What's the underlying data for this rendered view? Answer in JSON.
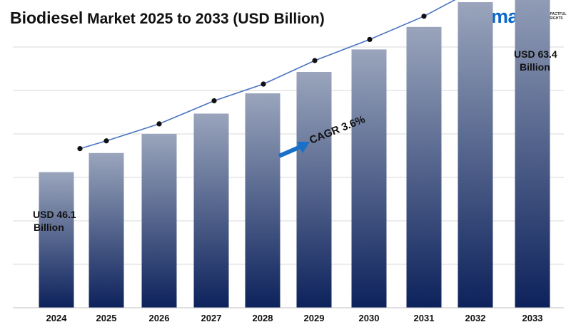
{
  "header": {
    "title_main": "Biodiesel",
    "title_rest": " Market 2025 to 2033 (USD Billion)"
  },
  "logo": {
    "word": "imarc",
    "tagline_1": "IMPACTFUL",
    "tagline_2": "INSIGHTS",
    "color": "#0a67c7"
  },
  "chart_data": {
    "type": "bar",
    "title": "Biodiesel Market 2025 to 2033 (USD Billion)",
    "categories": [
      "2024",
      "2025",
      "2026",
      "2027",
      "2028",
      "2029",
      "2030",
      "2031",
      "2032",
      "2033"
    ],
    "values": [
      46.1,
      47.8,
      49.5,
      51.3,
      53.1,
      55.0,
      57.0,
      59.0,
      61.2,
      63.4
    ],
    "ylim": [
      40,
      65
    ],
    "grid": true,
    "legend": "none",
    "bar_color_top": "#9aa5bc",
    "bar_color_bottom": "#0d225c",
    "line_color": "#4a73c0",
    "annotations": {
      "start_line1": "USD 46.1",
      "start_line2": "Billion",
      "end_line1": "USD 63.4",
      "end_line2": "Billion",
      "cagr": "CAGR 3.6%"
    },
    "arrow_color": "#1a6fc6"
  }
}
